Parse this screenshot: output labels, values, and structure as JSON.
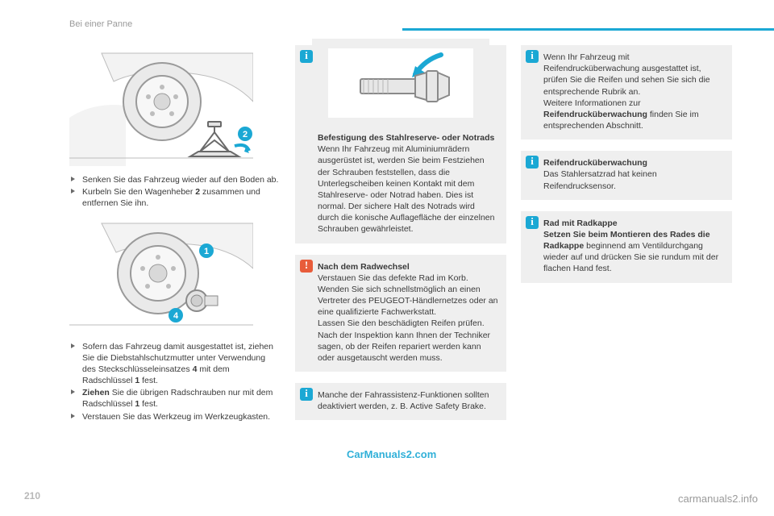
{
  "section_title": "Bei einer Panne",
  "page_number": "210",
  "footer_url": "carmanuals2.info",
  "watermark": "CarManuals2.com",
  "col1": {
    "bullets_a": [
      {
        "text": "Senken Sie das Fahrzeug wieder auf den Boden ab."
      },
      {
        "html": "Kurbeln Sie den Wagenheber <b>2</b> zusammen und entfernen Sie ihn."
      }
    ],
    "bullets_b": [
      {
        "html": "Sofern das Fahrzeug damit ausgestattet ist, ziehen Sie die Diebstahlschutzmutter unter Verwendung des Steckschlüsseleinsatzes <b>4</b> mit dem Radschlüssel <b>1</b> fest."
      },
      {
        "html": "<b>Ziehen</b> Sie die übrigen Radschrauben nur mit dem Radschlüssel <b>1</b> fest."
      },
      {
        "text": "Verstauen Sie das Werkzeug im Werkzeugkasten."
      }
    ]
  },
  "col2": {
    "info1_title": "Befestigung des Stahlreserve- oder Notrads",
    "info1_body": "Wenn Ihr Fahrzeug mit Aluminiumrädern ausgerüstet ist, werden Sie beim Festziehen der Schrauben feststellen, dass die Unterlegscheiben keinen Kontakt mit dem Stahlreserve- oder Notrad haben. Dies ist normal. Der sichere Halt des Notrads wird durch die konische Auflagefläche der einzelnen Schrauben gewährleistet.",
    "warn_title": "Nach dem Radwechsel",
    "warn_body1": "Verstauen Sie das defekte Rad im Korb.",
    "warn_body2": "Wenden Sie sich schnellstmöglich an einen Vertreter des PEUGEOT-Händlernetzes oder an eine qualifizierte Fachwerkstatt.",
    "warn_body3": "Lassen Sie den beschädigten Reifen prüfen. Nach der Inspektion kann Ihnen der Techniker sagen, ob der Reifen repariert werden kann oder ausgetauscht werden muss.",
    "info2_body": "Manche der Fahrassistenz-Funktionen sollten deaktiviert werden, z. B. Active Safety Brake."
  },
  "col3": {
    "info1_a": "Wenn Ihr Fahrzeug mit Reifendrucküberwachung ausgestattet ist, prüfen Sie die Reifen und sehen Sie sich die entsprechende Rubrik an.",
    "info1_b_pre": "Weitere Informationen zur ",
    "info1_b_bold": "Reifendrucküberwachung",
    "info1_b_post": " finden Sie im entsprechenden Abschnitt.",
    "info2_title": "Reifendrucküberwachung",
    "info2_body": "Das Stahlersatzrad hat keinen Reifendrucksensor.",
    "info3_title": "Rad mit Radkappe",
    "info3_bold": "Setzen Sie beim Montieren des Rades die Radkappe",
    "info3_rest": " beginnend am Ventildurchgang wieder auf und drücken Sie sie rundum mit der flachen Hand fest."
  },
  "colors": {
    "accent": "#1ba8d4",
    "warn": "#e85c3a",
    "badge1": "#1ba8d4",
    "badge4": "#1ba8d4"
  }
}
